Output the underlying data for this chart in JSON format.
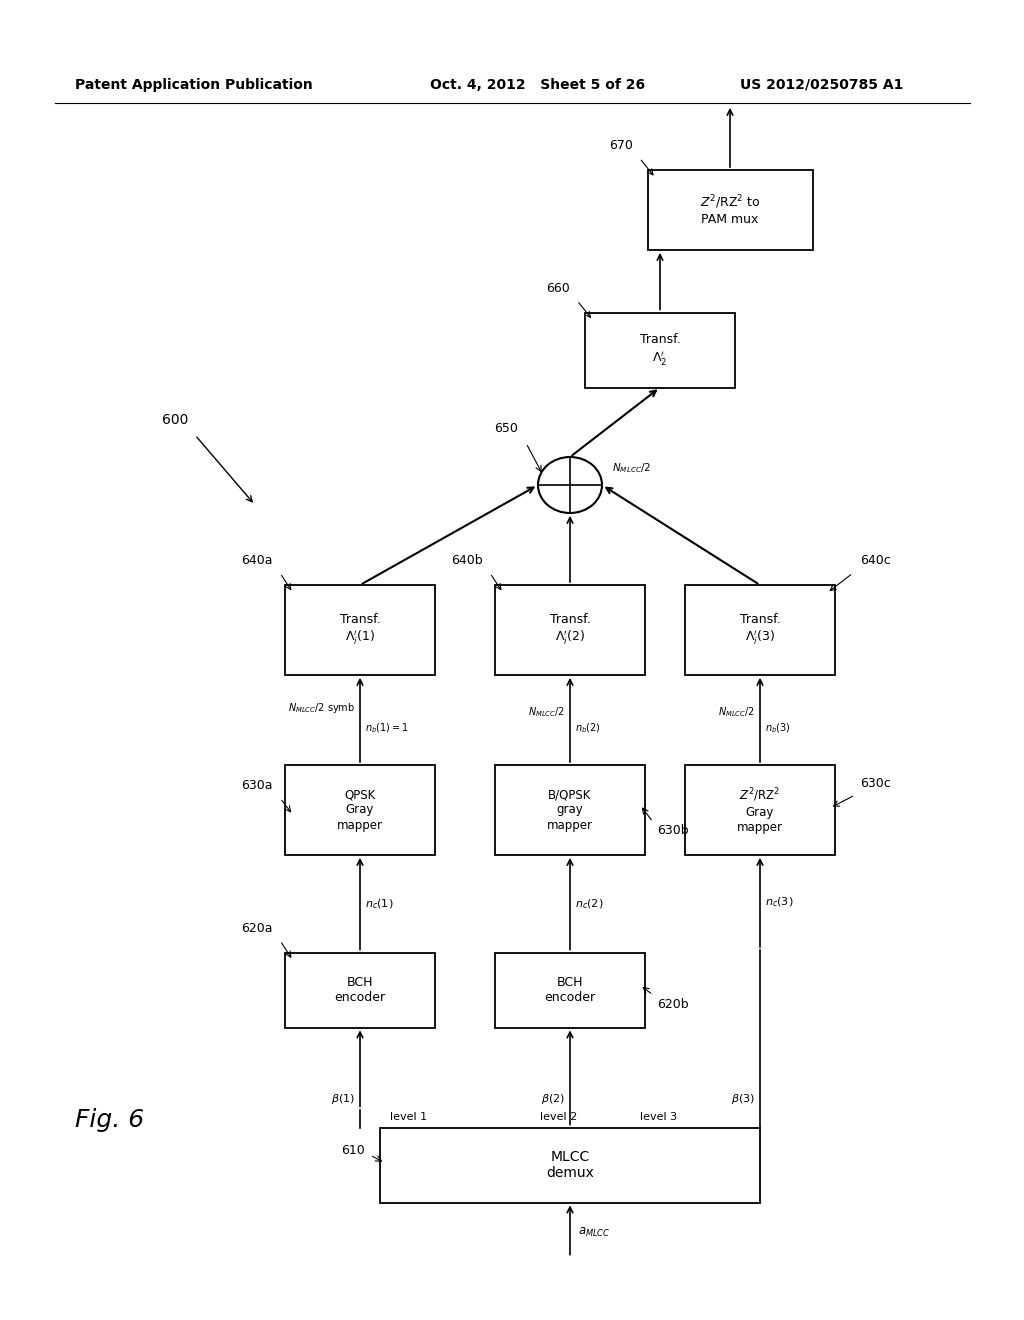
{
  "header_left": "Patent Application Publication",
  "header_mid": "Oct. 4, 2012   Sheet 5 of 26",
  "header_right": "US 2012/0250785 A1",
  "fig_label": "Fig. 6",
  "background": "#ffffff",
  "line_color": "#000000",
  "box_edge_color": "#000000",
  "text_color": "#000000"
}
